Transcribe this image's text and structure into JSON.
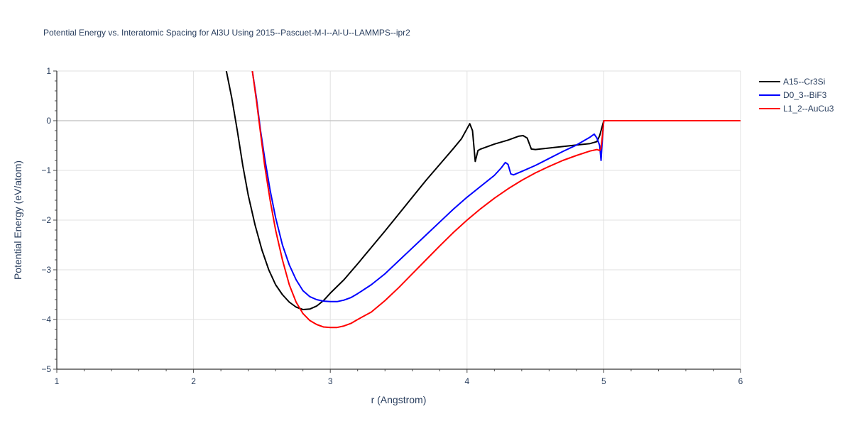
{
  "chart_data": {
    "type": "line",
    "title": "Potential Energy vs. Interatomic Spacing for Al3U Using 2015--Pascuet-M-I--Al-U--LAMMPS--ipr2",
    "xlabel": "r (Angstrom)",
    "ylabel": "Potential Energy (eV/atom)",
    "xlim": [
      1,
      6
    ],
    "ylim": [
      -5,
      1
    ],
    "x_ticks": [
      1,
      2,
      3,
      4,
      5,
      6
    ],
    "y_ticks": [
      1,
      0,
      -1,
      -2,
      -3,
      -4,
      -5
    ],
    "x_tick_labels": [
      "1",
      "2",
      "3",
      "4",
      "5",
      "6"
    ],
    "y_tick_labels": [
      "1",
      "0",
      "−1",
      "−2",
      "−3",
      "−4",
      "−5"
    ],
    "grid": true,
    "legend_position": "top-right",
    "series": [
      {
        "name": "A15--Cr3Si",
        "color": "#000000",
        "points": [
          [
            2.24,
            1.0
          ],
          [
            2.28,
            0.45
          ],
          [
            2.32,
            -0.2
          ],
          [
            2.36,
            -0.9
          ],
          [
            2.4,
            -1.5
          ],
          [
            2.45,
            -2.1
          ],
          [
            2.5,
            -2.6
          ],
          [
            2.55,
            -3.0
          ],
          [
            2.6,
            -3.3
          ],
          [
            2.65,
            -3.5
          ],
          [
            2.7,
            -3.65
          ],
          [
            2.75,
            -3.75
          ],
          [
            2.8,
            -3.8
          ],
          [
            2.85,
            -3.79
          ],
          [
            2.9,
            -3.73
          ],
          [
            2.95,
            -3.62
          ],
          [
            3.0,
            -3.47
          ],
          [
            3.1,
            -3.2
          ],
          [
            3.2,
            -2.88
          ],
          [
            3.3,
            -2.55
          ],
          [
            3.4,
            -2.22
          ],
          [
            3.5,
            -1.88
          ],
          [
            3.6,
            -1.54
          ],
          [
            3.7,
            -1.2
          ],
          [
            3.8,
            -0.88
          ],
          [
            3.9,
            -0.56
          ],
          [
            3.96,
            -0.36
          ],
          [
            4.0,
            -0.16
          ],
          [
            4.02,
            -0.06
          ],
          [
            4.04,
            -0.2
          ],
          [
            4.06,
            -0.82
          ],
          [
            4.08,
            -0.6
          ],
          [
            4.1,
            -0.57
          ],
          [
            4.2,
            -0.47
          ],
          [
            4.3,
            -0.39
          ],
          [
            4.38,
            -0.31
          ],
          [
            4.41,
            -0.3
          ],
          [
            4.44,
            -0.35
          ],
          [
            4.47,
            -0.57
          ],
          [
            4.5,
            -0.58
          ],
          [
            4.6,
            -0.55
          ],
          [
            4.7,
            -0.52
          ],
          [
            4.8,
            -0.49
          ],
          [
            4.9,
            -0.46
          ],
          [
            4.95,
            -0.42
          ],
          [
            4.97,
            -0.3
          ],
          [
            4.99,
            -0.1
          ],
          [
            5.0,
            0.0
          ],
          [
            6.0,
            0.0
          ]
        ]
      },
      {
        "name": "D0_3--BiF3",
        "color": "#0000ff",
        "points": [
          [
            2.43,
            1.0
          ],
          [
            2.46,
            0.45
          ],
          [
            2.49,
            -0.2
          ],
          [
            2.52,
            -0.75
          ],
          [
            2.56,
            -1.4
          ],
          [
            2.6,
            -1.95
          ],
          [
            2.65,
            -2.5
          ],
          [
            2.7,
            -2.9
          ],
          [
            2.75,
            -3.2
          ],
          [
            2.8,
            -3.42
          ],
          [
            2.85,
            -3.54
          ],
          [
            2.9,
            -3.6
          ],
          [
            2.95,
            -3.63
          ],
          [
            3.0,
            -3.64
          ],
          [
            3.05,
            -3.64
          ],
          [
            3.1,
            -3.61
          ],
          [
            3.15,
            -3.56
          ],
          [
            3.2,
            -3.48
          ],
          [
            3.3,
            -3.3
          ],
          [
            3.4,
            -3.08
          ],
          [
            3.5,
            -2.82
          ],
          [
            3.6,
            -2.56
          ],
          [
            3.7,
            -2.3
          ],
          [
            3.8,
            -2.04
          ],
          [
            3.9,
            -1.78
          ],
          [
            4.0,
            -1.54
          ],
          [
            4.1,
            -1.32
          ],
          [
            4.2,
            -1.1
          ],
          [
            4.25,
            -0.95
          ],
          [
            4.28,
            -0.84
          ],
          [
            4.3,
            -0.88
          ],
          [
            4.32,
            -1.07
          ],
          [
            4.34,
            -1.09
          ],
          [
            4.4,
            -1.02
          ],
          [
            4.5,
            -0.9
          ],
          [
            4.6,
            -0.76
          ],
          [
            4.7,
            -0.62
          ],
          [
            4.8,
            -0.49
          ],
          [
            4.9,
            -0.33
          ],
          [
            4.93,
            -0.27
          ],
          [
            4.95,
            -0.35
          ],
          [
            4.97,
            -0.5
          ],
          [
            4.98,
            -0.8
          ],
          [
            4.99,
            -0.35
          ],
          [
            5.0,
            0.0
          ],
          [
            6.0,
            0.0
          ]
        ]
      },
      {
        "name": "L1_2--AuCu3",
        "color": "#ff0000",
        "points": [
          [
            2.43,
            1.0
          ],
          [
            2.46,
            0.4
          ],
          [
            2.49,
            -0.25
          ],
          [
            2.52,
            -0.9
          ],
          [
            2.56,
            -1.6
          ],
          [
            2.6,
            -2.2
          ],
          [
            2.65,
            -2.8
          ],
          [
            2.7,
            -3.3
          ],
          [
            2.75,
            -3.65
          ],
          [
            2.8,
            -3.88
          ],
          [
            2.85,
            -4.02
          ],
          [
            2.9,
            -4.1
          ],
          [
            2.95,
            -4.15
          ],
          [
            3.0,
            -4.16
          ],
          [
            3.05,
            -4.16
          ],
          [
            3.1,
            -4.13
          ],
          [
            3.15,
            -4.08
          ],
          [
            3.2,
            -4.0
          ],
          [
            3.3,
            -3.85
          ],
          [
            3.4,
            -3.62
          ],
          [
            3.5,
            -3.36
          ],
          [
            3.6,
            -3.08
          ],
          [
            3.7,
            -2.8
          ],
          [
            3.8,
            -2.52
          ],
          [
            3.9,
            -2.25
          ],
          [
            4.0,
            -2.0
          ],
          [
            4.1,
            -1.77
          ],
          [
            4.2,
            -1.56
          ],
          [
            4.3,
            -1.37
          ],
          [
            4.4,
            -1.2
          ],
          [
            4.5,
            -1.05
          ],
          [
            4.6,
            -0.92
          ],
          [
            4.7,
            -0.8
          ],
          [
            4.8,
            -0.7
          ],
          [
            4.9,
            -0.61
          ],
          [
            4.95,
            -0.58
          ],
          [
            4.97,
            -0.6
          ],
          [
            4.98,
            -0.55
          ],
          [
            4.99,
            -0.3
          ],
          [
            5.0,
            0.0
          ],
          [
            6.0,
            0.0
          ]
        ]
      }
    ]
  }
}
